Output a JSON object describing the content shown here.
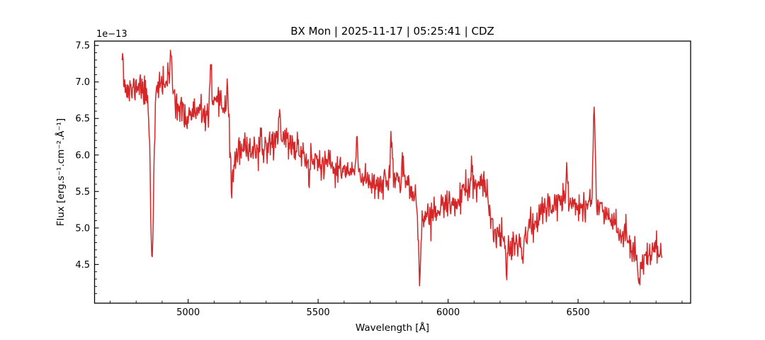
{
  "figure": {
    "background": "#ffffff"
  },
  "chart_data": {
    "type": "line",
    "title": "BX Mon | 2025-11-17 | 05:25:41 | CDZ",
    "xlabel": "Wavelength [Å]",
    "ylabel": "Flux [erg.s⁻¹.cm⁻².Å⁻¹]",
    "y_offset_text": "1e−13",
    "line_color": "#d62728",
    "line_width": 1.5,
    "axis_color": "#000000",
    "grid": false,
    "legend": null,
    "xlim": [
      4640,
      6933
    ],
    "ylim": [
      3.97,
      7.56
    ],
    "x_ticks": [
      5000,
      5500,
      6000,
      6500
    ],
    "x_minor_step": 100,
    "y_ticks": [
      4.5,
      5.0,
      5.5,
      6.0,
      6.5,
      7.0,
      7.5
    ],
    "y_minor_step": 0.1,
    "y_unit_scale": "1e-13",
    "series": {
      "name": "spectrum",
      "x_start": 4746,
      "x_end": 6823,
      "x_step": 2,
      "noise_sigma": 0.105,
      "noise_seed": 11,
      "clip": [
        4.12,
        7.5
      ],
      "envelope": [
        [
          4745,
          7.1
        ],
        [
          4758,
          6.92
        ],
        [
          4775,
          6.85
        ],
        [
          4795,
          6.92
        ],
        [
          4812,
          6.98
        ],
        [
          4828,
          6.86
        ],
        [
          4845,
          6.8
        ],
        [
          4862,
          6.8
        ],
        [
          4878,
          6.88
        ],
        [
          4895,
          6.94
        ],
        [
          4910,
          7.0
        ],
        [
          4925,
          7.02
        ],
        [
          4938,
          6.95
        ],
        [
          4952,
          6.8
        ],
        [
          4968,
          6.6
        ],
        [
          4988,
          6.52
        ],
        [
          5010,
          6.56
        ],
        [
          5035,
          6.58
        ],
        [
          5060,
          6.53
        ],
        [
          5085,
          6.6
        ],
        [
          5110,
          6.66
        ],
        [
          5135,
          6.7
        ],
        [
          5152,
          6.62
        ],
        [
          5168,
          6.0
        ],
        [
          5185,
          6.0
        ],
        [
          5215,
          6.06
        ],
        [
          5245,
          6.1
        ],
        [
          5275,
          6.06
        ],
        [
          5305,
          6.12
        ],
        [
          5335,
          6.22
        ],
        [
          5365,
          6.26
        ],
        [
          5395,
          6.15
        ],
        [
          5425,
          6.06
        ],
        [
          5455,
          6.0
        ],
        [
          5485,
          5.94
        ],
        [
          5515,
          5.86
        ],
        [
          5545,
          5.84
        ],
        [
          5575,
          5.8
        ],
        [
          5605,
          5.77
        ],
        [
          5635,
          5.75
        ],
        [
          5665,
          5.73
        ],
        [
          5695,
          5.66
        ],
        [
          5725,
          5.61
        ],
        [
          5755,
          5.63
        ],
        [
          5785,
          5.7
        ],
        [
          5815,
          5.7
        ],
        [
          5845,
          5.6
        ],
        [
          5872,
          5.45
        ],
        [
          5895,
          5.18
        ],
        [
          5920,
          5.16
        ],
        [
          5950,
          5.22
        ],
        [
          5980,
          5.28
        ],
        [
          6010,
          5.31
        ],
        [
          6040,
          5.39
        ],
        [
          6070,
          5.49
        ],
        [
          6100,
          5.56
        ],
        [
          6130,
          5.58
        ],
        [
          6150,
          5.45
        ],
        [
          6168,
          5.05
        ],
        [
          6190,
          4.92
        ],
        [
          6215,
          4.85
        ],
        [
          6245,
          4.8
        ],
        [
          6275,
          4.82
        ],
        [
          6305,
          4.96
        ],
        [
          6335,
          5.1
        ],
        [
          6365,
          5.22
        ],
        [
          6395,
          5.32
        ],
        [
          6425,
          5.38
        ],
        [
          6455,
          5.42
        ],
        [
          6485,
          5.33
        ],
        [
          6515,
          5.3
        ],
        [
          6545,
          5.38
        ],
        [
          6575,
          5.32
        ],
        [
          6605,
          5.24
        ],
        [
          6635,
          5.12
        ],
        [
          6665,
          4.95
        ],
        [
          6695,
          4.8
        ],
        [
          6725,
          4.65
        ],
        [
          6755,
          4.58
        ],
        [
          6785,
          4.66
        ],
        [
          6805,
          4.73
        ],
        [
          6823,
          4.62
        ]
      ],
      "features": [
        [
          4748,
          3,
          0.42
        ],
        [
          4861,
          6,
          -2.18
        ],
        [
          4933,
          3,
          0.42
        ],
        [
          5088,
          3,
          0.65
        ],
        [
          5150,
          3,
          0.35
        ],
        [
          5168,
          5,
          -0.5
        ],
        [
          5352,
          3,
          0.38
        ],
        [
          5465,
          3,
          -0.42
        ],
        [
          5648,
          3,
          0.42
        ],
        [
          5782,
          3,
          0.4
        ],
        [
          5891,
          5,
          -0.88
        ],
        [
          6090,
          3,
          0.33
        ],
        [
          6225,
          3,
          -0.38
        ],
        [
          6287,
          3,
          -0.4
        ],
        [
          6458,
          3,
          0.5
        ],
        [
          6562,
          3.5,
          1.35
        ],
        [
          6735,
          4,
          -0.45
        ]
      ]
    }
  }
}
